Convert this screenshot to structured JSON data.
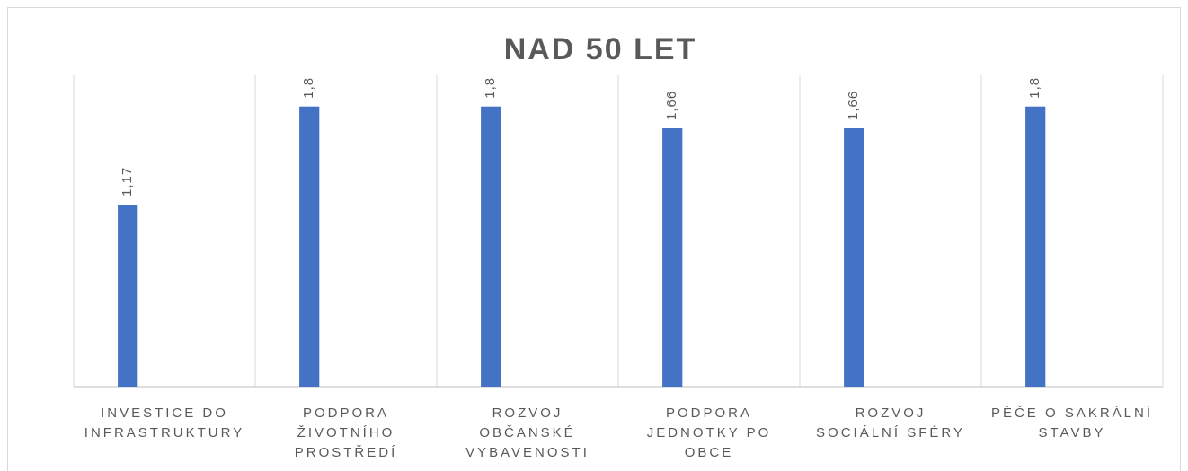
{
  "chart_data": {
    "type": "bar",
    "title": "NAD 50 LET",
    "categories": [
      "INVESTICE DO\nINFRASTRUKTURY",
      "PODPORA\nŽIVOTNÍHO\nPROSTŘEDÍ",
      "ROZVOJ\nOBČANSKÉ\nVYBAVENOSTI",
      "PODPORA\nJEDNOTKY PO\nOBCE",
      "ROZVOJ\nSOCIÁLNÍ SFÉRY",
      "PÉČE O SAKRÁLNÍ\nSTAVBY"
    ],
    "values": [
      1.17,
      1.8,
      1.8,
      1.66,
      1.66,
      1.8
    ],
    "value_labels": [
      "1,17",
      "1,8",
      "1,8",
      "1,66",
      "1,66",
      "1,8"
    ],
    "color": "#4472c4",
    "ylim": [
      0,
      2
    ]
  }
}
